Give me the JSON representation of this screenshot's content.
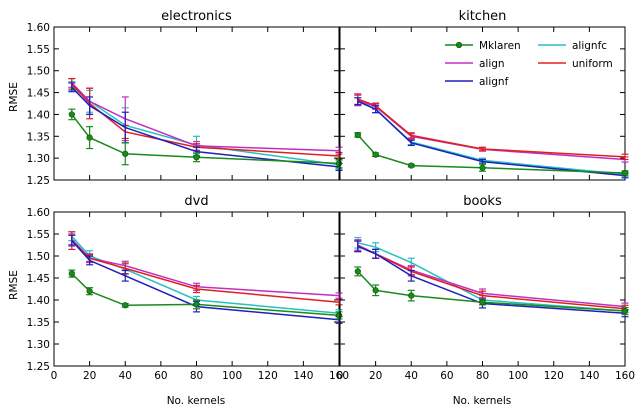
{
  "chart_data": {
    "type": "line",
    "layout": "2x2",
    "shared_x_label": "No. kernels",
    "shared_y_label": "RMSE",
    "xlim": [
      0,
      160
    ],
    "xticks": [
      0,
      20,
      40,
      60,
      80,
      100,
      120,
      140,
      160
    ],
    "x": [
      10,
      20,
      40,
      80,
      160
    ],
    "legend": {
      "panel": "kitchen",
      "position": "upper-right",
      "ncol": 2,
      "entries": [
        "Mklaren",
        "align",
        "alignf",
        "alignfc",
        "uniform"
      ]
    },
    "series_styles": {
      "Mklaren": {
        "color": "#1a8a1a",
        "marker": "circle"
      },
      "align": {
        "color": "#c030c0",
        "marker": "none"
      },
      "alignf": {
        "color": "#1f1fbb",
        "marker": "none"
      },
      "alignfc": {
        "color": "#25c1c1",
        "marker": "none"
      },
      "uniform": {
        "color": "#e02020",
        "marker": "none"
      }
    },
    "panels": [
      {
        "title": "electronics",
        "ylim": [
          1.25,
          1.6
        ],
        "yticks": [
          "1.25",
          "1.30",
          "1.35",
          "1.40",
          "1.45",
          "1.50",
          "1.55",
          "1.60"
        ],
        "series": [
          {
            "name": "alignfc",
            "y": [
              1.465,
              1.43,
              1.375,
              1.33,
              1.285
            ],
            "err": [
              0.01,
              0.025,
              0.04,
              0.02,
              0.01
            ]
          },
          {
            "name": "align",
            "y": [
              1.472,
              1.43,
              1.39,
              1.328,
              1.317
            ],
            "err": [
              0.01,
              0.03,
              0.05,
              0.01,
              0.008
            ]
          },
          {
            "name": "uniform",
            "y": [
              1.47,
              1.425,
              1.36,
              1.325,
              1.305
            ],
            "err": [
              0.012,
              0.035,
              0.015,
              0.008,
              0.008
            ]
          },
          {
            "name": "alignf",
            "y": [
              1.462,
              1.42,
              1.37,
              1.315,
              1.28
            ],
            "err": [
              0.01,
              0.02,
              0.035,
              0.01,
              0.008
            ]
          },
          {
            "name": "Mklaren",
            "y": [
              1.4,
              1.347,
              1.31,
              1.302,
              1.288
            ],
            "err": [
              0.012,
              0.025,
              0.025,
              0.01,
              0.01
            ]
          }
        ]
      },
      {
        "title": "kitchen",
        "ylim": [
          1.25,
          1.6
        ],
        "yticks": [
          "1.25",
          "1.30",
          "1.35",
          "1.40",
          "1.45",
          "1.50",
          "1.55",
          "1.60"
        ],
        "series": [
          {
            "name": "alignfc",
            "y": [
              1.43,
              1.412,
              1.337,
              1.295,
              1.263
            ],
            "err": [
              0.008,
              0.008,
              0.006,
              0.005,
              0.005
            ]
          },
          {
            "name": "align",
            "y": [
              1.432,
              1.418,
              1.35,
              1.32,
              1.297
            ],
            "err": [
              0.012,
              0.006,
              0.006,
              0.004,
              0.006
            ]
          },
          {
            "name": "uniform",
            "y": [
              1.435,
              1.42,
              1.352,
              1.321,
              1.303
            ],
            "err": [
              0.012,
              0.006,
              0.006,
              0.004,
              0.006
            ]
          },
          {
            "name": "alignf",
            "y": [
              1.43,
              1.412,
              1.335,
              1.292,
              1.26
            ],
            "err": [
              0.008,
              0.008,
              0.006,
              0.005,
              0.005
            ]
          },
          {
            "name": "Mklaren",
            "y": [
              1.353,
              1.308,
              1.283,
              1.278,
              1.266
            ],
            "err": [
              0.005,
              0.004,
              0.003,
              0.008,
              0.005
            ]
          }
        ]
      },
      {
        "title": "dvd",
        "ylim": [
          1.25,
          1.6
        ],
        "yticks": [
          "1.25",
          "1.30",
          "1.35",
          "1.40",
          "1.45",
          "1.50",
          "1.55",
          "1.60"
        ],
        "series": [
          {
            "name": "alignfc",
            "y": [
              1.545,
              1.5,
              1.47,
              1.4,
              1.37
            ],
            "err": [
              0.01,
              0.012,
              0.012,
              0.008,
              0.008
            ]
          },
          {
            "name": "align",
            "y": [
              1.538,
              1.495,
              1.478,
              1.43,
              1.41
            ],
            "err": [
              0.012,
              0.01,
              0.01,
              0.008,
              0.006
            ]
          },
          {
            "name": "uniform",
            "y": [
              1.535,
              1.495,
              1.472,
              1.425,
              1.395
            ],
            "err": [
              0.02,
              0.008,
              0.012,
              0.008,
              0.006
            ]
          },
          {
            "name": "alignf",
            "y": [
              1.535,
              1.49,
              1.455,
              1.385,
              1.355
            ],
            "err": [
              0.012,
              0.01,
              0.012,
              0.012,
              0.008
            ]
          },
          {
            "name": "Mklaren",
            "y": [
              1.46,
              1.42,
              1.388,
              1.39,
              1.365
            ],
            "err": [
              0.008,
              0.008,
              0.004,
              0.01,
              0.008
            ]
          }
        ]
      },
      {
        "title": "books",
        "ylim": [
          1.25,
          1.6
        ],
        "yticks": [
          "1.25",
          "1.30",
          "1.35",
          "1.40",
          "1.45",
          "1.50",
          "1.55",
          "1.60"
        ],
        "series": [
          {
            "name": "alignfc",
            "y": [
              1.53,
              1.52,
              1.485,
              1.4,
              1.375
            ],
            "err": [
              0.012,
              0.01,
              0.01,
              0.01,
              0.008
            ]
          },
          {
            "name": "align",
            "y": [
              1.525,
              1.505,
              1.468,
              1.415,
              1.385
            ],
            "err": [
              0.012,
              0.01,
              0.01,
              0.01,
              0.008
            ]
          },
          {
            "name": "uniform",
            "y": [
              1.522,
              1.505,
              1.465,
              1.41,
              1.38
            ],
            "err": [
              0.012,
              0.01,
              0.01,
              0.01,
              0.008
            ]
          },
          {
            "name": "alignf",
            "y": [
              1.522,
              1.505,
              1.455,
              1.392,
              1.37
            ],
            "err": [
              0.012,
              0.01,
              0.012,
              0.01,
              0.008
            ]
          },
          {
            "name": "Mklaren",
            "y": [
              1.465,
              1.422,
              1.41,
              1.395,
              1.375
            ],
            "err": [
              0.01,
              0.012,
              0.012,
              0.006,
              0.008
            ]
          }
        ]
      }
    ]
  }
}
